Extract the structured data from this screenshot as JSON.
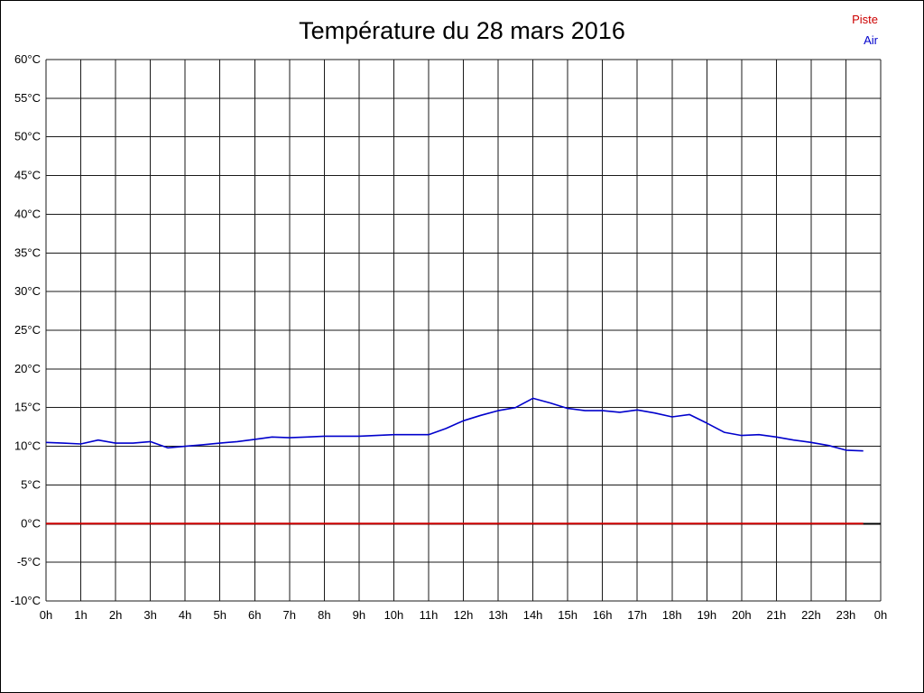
{
  "title": "Température du 28 mars 2016",
  "legend": {
    "piste": {
      "label": "Piste",
      "color": "#cc0000"
    },
    "air": {
      "label": "Air",
      "color": "#0000cc"
    }
  },
  "chart_data": {
    "type": "line",
    "title": "Température du 28 mars 2016",
    "xlabel": "",
    "ylabel": "",
    "ylim": [
      -10,
      60
    ],
    "y_tick_step": 5,
    "y_tick_labels": [
      "60°C",
      "55°C",
      "50°C",
      "45°C",
      "40°C",
      "35°C",
      "30°C",
      "25°C",
      "20°C",
      "15°C",
      "10°C",
      "5°C",
      "0°C",
      "-5°C",
      "-10°C"
    ],
    "x_ticks": [
      "0h",
      "1h",
      "2h",
      "3h",
      "4h",
      "5h",
      "6h",
      "7h",
      "8h",
      "9h",
      "10h",
      "11h",
      "12h",
      "13h",
      "14h",
      "15h",
      "16h",
      "17h",
      "18h",
      "19h",
      "20h",
      "21h",
      "22h",
      "23h",
      "0h"
    ],
    "x_hours_total": 24,
    "grid": true,
    "legend_position": "top-right",
    "zero_axis_color": "#000000",
    "series": [
      {
        "name": "Piste",
        "color": "#cc0000",
        "x_start": 0,
        "x_step": 0.5,
        "values": [
          0,
          0,
          0,
          0,
          0,
          0,
          0,
          0,
          0,
          0,
          0,
          0,
          0,
          0,
          0,
          0,
          0,
          0,
          0,
          0,
          0,
          0,
          0,
          0,
          0,
          0,
          0,
          0,
          0,
          0,
          0,
          0,
          0,
          0,
          0,
          0,
          0,
          0,
          0,
          0,
          0,
          0,
          0,
          0,
          0,
          0,
          0,
          0
        ]
      },
      {
        "name": "Air",
        "color": "#0000cc",
        "x_start": 0,
        "x_step": 0.5,
        "values": [
          10.5,
          10.4,
          10.3,
          10.8,
          10.4,
          10.4,
          10.6,
          9.8,
          10.0,
          10.2,
          10.4,
          10.6,
          10.9,
          11.2,
          11.1,
          11.2,
          11.3,
          11.3,
          11.3,
          11.4,
          11.5,
          11.5,
          11.5,
          12.3,
          13.3,
          14.0,
          14.6,
          15.0,
          16.2,
          15.6,
          14.9,
          14.6,
          14.6,
          14.4,
          14.7,
          14.3,
          13.8,
          14.1,
          13.0,
          11.8,
          11.4,
          11.5,
          11.2,
          10.8,
          10.5,
          10.1,
          9.5,
          9.4
        ]
      }
    ]
  }
}
